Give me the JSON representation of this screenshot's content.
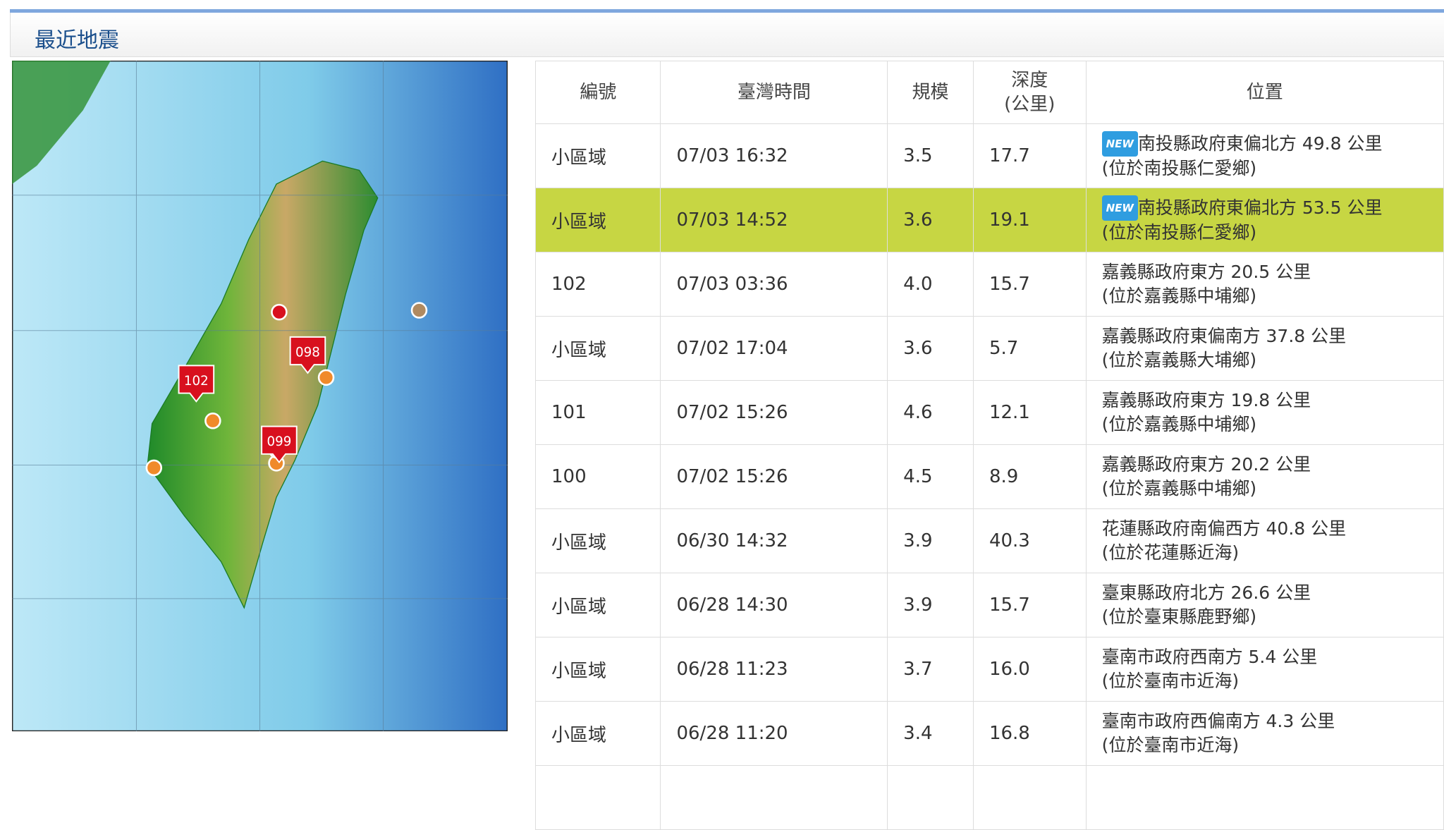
{
  "header": {
    "title": "最近地震"
  },
  "map": {
    "markers": [
      "102",
      "098",
      "099"
    ]
  },
  "table": {
    "columns": [
      "編號",
      "臺灣時間",
      "規模",
      "深度\n(公里)",
      "位置"
    ],
    "highlight_row": 1,
    "rows": [
      {
        "id": "小區域",
        "time": "07/03 16:32",
        "magnitude": "3.5",
        "depth": "17.7",
        "badge": "NEW",
        "location": "南投縣政府東偏北方 49.8 公里",
        "detail": "(位於南投縣仁愛鄉)"
      },
      {
        "id": "小區域",
        "time": "07/03 14:52",
        "magnitude": "3.6",
        "depth": "19.1",
        "badge": "NEW",
        "location": "南投縣政府東偏北方 53.5 公里",
        "detail": "(位於南投縣仁愛鄉)"
      },
      {
        "id": "102",
        "time": "07/03 03:36",
        "magnitude": "4.0",
        "depth": "15.7",
        "location": "嘉義縣政府東方 20.5 公里",
        "detail": "(位於嘉義縣中埔鄉)"
      },
      {
        "id": "小區域",
        "time": "07/02 17:04",
        "magnitude": "3.6",
        "depth": "5.7",
        "location": "嘉義縣政府東偏南方 37.8 公里",
        "detail": "(位於嘉義縣大埔鄉)"
      },
      {
        "id": "101",
        "time": "07/02 15:26",
        "magnitude": "4.6",
        "depth": "12.1",
        "location": "嘉義縣政府東方 19.8 公里",
        "detail": "(位於嘉義縣中埔鄉)"
      },
      {
        "id": "100",
        "time": "07/02 15:26",
        "magnitude": "4.5",
        "depth": "8.9",
        "location": "嘉義縣政府東方 20.2 公里",
        "detail": "(位於嘉義縣中埔鄉)"
      },
      {
        "id": "小區域",
        "time": "06/30 14:32",
        "magnitude": "3.9",
        "depth": "40.3",
        "location": "花蓮縣政府南偏西方 40.8 公里",
        "detail": "(位於花蓮縣近海)"
      },
      {
        "id": "小區域",
        "time": "06/28 14:30",
        "magnitude": "3.9",
        "depth": "15.7",
        "location": "臺東縣政府北方 26.6 公里",
        "detail": "(位於臺東縣鹿野鄉)"
      },
      {
        "id": "小區域",
        "time": "06/28 11:23",
        "magnitude": "3.7",
        "depth": "16.0",
        "location": "臺南市政府西南方 5.4 公里",
        "detail": "(位於臺南市近海)"
      },
      {
        "id": "小區域",
        "time": "06/28 11:20",
        "magnitude": "3.4",
        "depth": "16.8",
        "location": "臺南市政府西偏南方 4.3 公里",
        "detail": "(位於臺南市近海)"
      }
    ]
  }
}
